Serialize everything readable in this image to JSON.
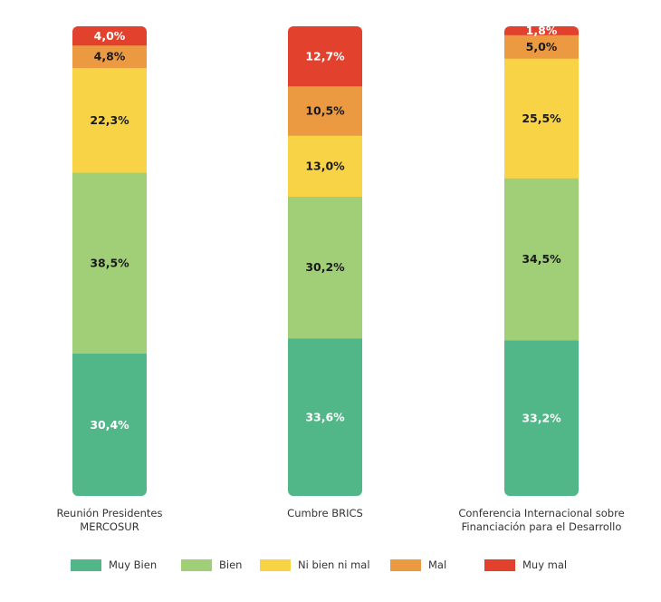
{
  "chart_data": {
    "type": "stacked-bar-100",
    "title": "",
    "xlabel": "",
    "ylabel": "",
    "ylim": [
      0,
      100
    ],
    "grid": false,
    "legend_position": "bottom",
    "categories": [
      [
        "Reunión Presidentes",
        "MERCOSUR"
      ],
      [
        "Cumbre BRICS"
      ],
      [
        "Conferencia Internacional sobre",
        "Financiación para el Desarrollo"
      ]
    ],
    "series": [
      {
        "name": "Muy Bien",
        "color": "#52b788",
        "label_color": "#ffffff",
        "values": [
          30.4,
          33.6,
          33.2
        ],
        "labels": [
          "30,4%",
          "33,6%",
          "33,2%"
        ]
      },
      {
        "name": "Bien",
        "color": "#a1cf78",
        "label_color": "#1a1a1a",
        "values": [
          38.5,
          30.2,
          34.5
        ],
        "labels": [
          "38,5%",
          "30,2%",
          "34,5%"
        ]
      },
      {
        "name": "Ni bien ni mal",
        "color": "#f8d346",
        "label_color": "#1a1a1a",
        "values": [
          22.3,
          13.0,
          25.5
        ],
        "labels": [
          "22,3%",
          "13,0%",
          "25,5%"
        ]
      },
      {
        "name": "Mal",
        "color": "#ec9a42",
        "label_color": "#1a1a1a",
        "values": [
          4.8,
          10.5,
          5.0
        ],
        "labels": [
          "4,8%",
          "10,5%",
          "5,0%"
        ]
      },
      {
        "name": "Muy mal",
        "color": "#e2412e",
        "label_color": "#ffffff",
        "values": [
          4.0,
          12.7,
          1.8
        ],
        "labels": [
          "4,0%",
          "12,7%",
          "1,8%"
        ]
      }
    ]
  }
}
